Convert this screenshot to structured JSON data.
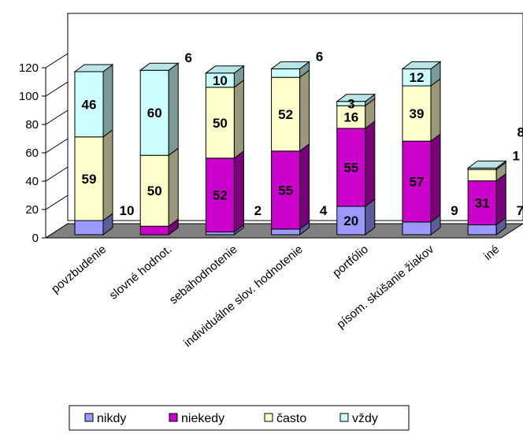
{
  "chart_data": {
    "type": "bar",
    "stacked": true,
    "three_d": true,
    "categories": [
      "povzbudenie",
      "slovné hodnot.",
      "sebahodnotenie",
      "individuálne slov. hodnotenie",
      "portfólio",
      "písom. skúšanie žiakov",
      "iné"
    ],
    "series": [
      {
        "name": "nikdy",
        "color": "#9999ff",
        "values": [
          10,
          0,
          2,
          4,
          20,
          9,
          7
        ]
      },
      {
        "name": "niekedy",
        "color": "#cc00cc",
        "values": [
          0,
          6,
          52,
          55,
          55,
          57,
          31
        ]
      },
      {
        "name": "často",
        "color": "#ffffcc",
        "values": [
          59,
          50,
          50,
          52,
          16,
          39,
          8
        ]
      },
      {
        "name": "vždy",
        "color": "#ccffff",
        "values": [
          46,
          60,
          10,
          6,
          3,
          12,
          1
        ]
      }
    ],
    "data_labels": [
      [
        {
          "text": "46",
          "series": 3
        },
        {
          "text": "59",
          "series": 2
        },
        {
          "text": "10",
          "series": 0,
          "outside": true
        }
      ],
      [
        {
          "text": "60",
          "series": 3
        },
        {
          "text": "50",
          "series": 2
        },
        {
          "text": "6",
          "series": 1,
          "outside": true
        }
      ],
      [
        {
          "text": "10",
          "series": 3
        },
        {
          "text": "50",
          "series": 2
        },
        {
          "text": "52",
          "series": 1
        },
        {
          "text": "2",
          "series": 0,
          "outside": true
        }
      ],
      [
        {
          "text": "6",
          "series": 3,
          "outside": true
        },
        {
          "text": "52",
          "series": 2
        },
        {
          "text": "55",
          "series": 1
        },
        {
          "text": "4",
          "series": 0,
          "outside": true
        }
      ],
      [
        {
          "text": "3",
          "series": 3
        },
        {
          "text": "16",
          "series": 2
        },
        {
          "text": "55",
          "series": 1
        },
        {
          "text": "20",
          "series": 0
        }
      ],
      [
        {
          "text": "12",
          "series": 3
        },
        {
          "text": "39",
          "series": 2
        },
        {
          "text": "57",
          "series": 1
        },
        {
          "text": "9",
          "series": 0,
          "outside": true
        }
      ],
      [
        {
          "text": "1",
          "series": 3,
          "outside": true
        },
        {
          "text": "8",
          "series": 2,
          "outside": true
        },
        {
          "text": "31",
          "series": 1
        },
        {
          "text": "7",
          "series": 0,
          "outside": true
        }
      ]
    ],
    "ylim": [
      0,
      120
    ],
    "yticks": [
      0,
      20,
      40,
      60,
      80,
      100,
      120
    ],
    "title": "",
    "xlabel": "",
    "ylabel": "",
    "grid": false,
    "legend_position": "bottom"
  }
}
